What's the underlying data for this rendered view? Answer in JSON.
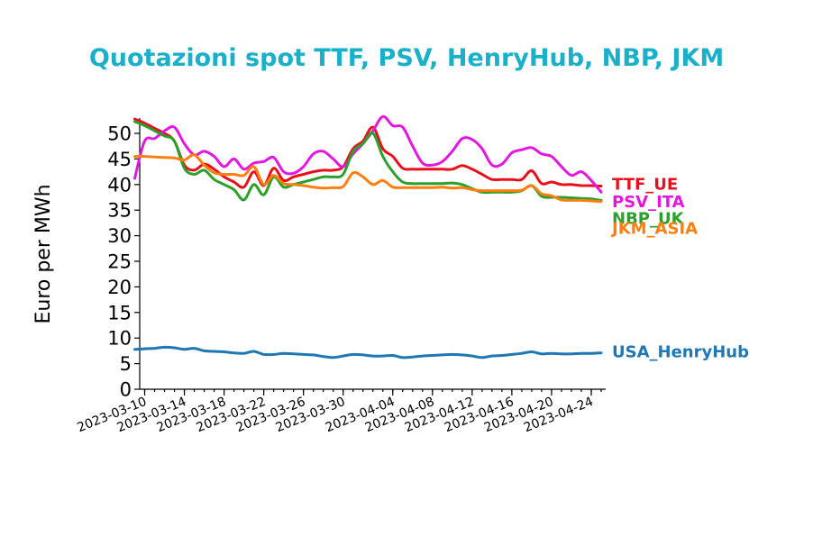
{
  "chart_data": {
    "type": "line",
    "title": "Quotazioni spot TTF, PSV, HenryHub, NBP, JKM",
    "xlabel": "",
    "ylabel": "Euro per MWh",
    "ylim": [
      0,
      53
    ],
    "yticks": [
      0,
      5,
      10,
      15,
      20,
      25,
      30,
      35,
      40,
      45,
      50
    ],
    "xlim": [
      "2023-03-10",
      "2023-04-24"
    ],
    "xticks": [
      "2023-03-10",
      "2023-03-14",
      "2023-03-18",
      "2023-03-22",
      "2023-03-26",
      "2023-03-30",
      "2023-04-04",
      "2023-04-08",
      "2023-04-12",
      "2023-04-16",
      "2023-04-20",
      "2023-04-24"
    ],
    "grid": false,
    "legend": "inline labels at right end of lines",
    "series": [
      {
        "name": "TTF_UE",
        "color": "#e8111b",
        "points": [
          [
            "2023-03-09",
            52.8
          ],
          [
            "2023-03-10",
            52.0
          ],
          [
            "2023-03-11",
            51.0
          ],
          [
            "2023-03-12",
            50.0
          ],
          [
            "2023-03-13",
            48.5
          ],
          [
            "2023-03-14",
            43.8
          ],
          [
            "2023-03-15",
            42.8
          ],
          [
            "2023-03-16",
            44.0
          ],
          [
            "2023-03-17",
            43.0
          ],
          [
            "2023-03-18",
            41.5
          ],
          [
            "2023-03-19",
            40.5
          ],
          [
            "2023-03-20",
            39.5
          ],
          [
            "2023-03-21",
            42.5
          ],
          [
            "2023-03-22",
            39.8
          ],
          [
            "2023-03-23",
            43.2
          ],
          [
            "2023-03-24",
            40.8
          ],
          [
            "2023-03-25",
            41.5
          ],
          [
            "2023-03-26",
            42.0
          ],
          [
            "2023-03-27",
            42.5
          ],
          [
            "2023-03-28",
            42.8
          ],
          [
            "2023-03-29",
            42.8
          ],
          [
            "2023-03-30",
            43.5
          ],
          [
            "2023-03-31",
            47.0
          ],
          [
            "2023-04-01",
            48.5
          ],
          [
            "2023-04-02",
            51.2
          ],
          [
            "2023-04-03",
            47.0
          ],
          [
            "2023-04-04",
            45.5
          ],
          [
            "2023-04-05",
            43.2
          ],
          [
            "2023-04-06",
            43.0
          ],
          [
            "2023-04-07",
            43.0
          ],
          [
            "2023-04-08",
            43.0
          ],
          [
            "2023-04-09",
            43.0
          ],
          [
            "2023-04-10",
            43.0
          ],
          [
            "2023-04-11",
            43.7
          ],
          [
            "2023-04-12",
            43.0
          ],
          [
            "2023-04-13",
            42.0
          ],
          [
            "2023-04-14",
            41.0
          ],
          [
            "2023-04-15",
            41.0
          ],
          [
            "2023-04-16",
            41.0
          ],
          [
            "2023-04-17",
            41.0
          ],
          [
            "2023-04-18",
            42.7
          ],
          [
            "2023-04-19",
            40.2
          ],
          [
            "2023-04-20",
            40.5
          ],
          [
            "2023-04-21",
            40.0
          ],
          [
            "2023-04-22",
            40.0
          ],
          [
            "2023-04-23",
            39.8
          ],
          [
            "2023-04-24",
            39.8
          ],
          [
            "2023-04-25",
            39.7
          ]
        ]
      },
      {
        "name": "PSV_ITA",
        "color": "#e317e0",
        "points": [
          [
            "2023-03-09",
            41.2
          ],
          [
            "2023-03-10",
            48.5
          ],
          [
            "2023-03-11",
            49.0
          ],
          [
            "2023-03-12",
            50.5
          ],
          [
            "2023-03-13",
            51.2
          ],
          [
            "2023-03-14",
            48.0
          ],
          [
            "2023-03-15",
            45.8
          ],
          [
            "2023-03-16",
            46.5
          ],
          [
            "2023-03-17",
            45.5
          ],
          [
            "2023-03-18",
            43.5
          ],
          [
            "2023-03-19",
            45.0
          ],
          [
            "2023-03-20",
            43.0
          ],
          [
            "2023-03-21",
            44.2
          ],
          [
            "2023-03-22",
            44.5
          ],
          [
            "2023-03-23",
            45.3
          ],
          [
            "2023-03-24",
            42.5
          ],
          [
            "2023-03-25",
            42.2
          ],
          [
            "2023-03-26",
            43.5
          ],
          [
            "2023-03-27",
            46.0
          ],
          [
            "2023-03-28",
            46.5
          ],
          [
            "2023-03-29",
            45.0
          ],
          [
            "2023-03-30",
            43.5
          ],
          [
            "2023-03-31",
            46.0
          ],
          [
            "2023-04-01",
            48.0
          ],
          [
            "2023-04-02",
            50.5
          ],
          [
            "2023-04-03",
            53.3
          ],
          [
            "2023-04-04",
            51.5
          ],
          [
            "2023-04-05",
            51.2
          ],
          [
            "2023-04-06",
            47.5
          ],
          [
            "2023-04-07",
            44.2
          ],
          [
            "2023-04-08",
            43.8
          ],
          [
            "2023-04-09",
            44.5
          ],
          [
            "2023-04-10",
            46.5
          ],
          [
            "2023-04-11",
            49.0
          ],
          [
            "2023-04-12",
            48.8
          ],
          [
            "2023-04-13",
            47.0
          ],
          [
            "2023-04-14",
            43.8
          ],
          [
            "2023-04-15",
            44.0
          ],
          [
            "2023-04-16",
            46.2
          ],
          [
            "2023-04-17",
            46.8
          ],
          [
            "2023-04-18",
            47.2
          ],
          [
            "2023-04-19",
            46.0
          ],
          [
            "2023-04-20",
            45.5
          ],
          [
            "2023-04-21",
            43.5
          ],
          [
            "2023-04-22",
            41.8
          ],
          [
            "2023-04-23",
            42.5
          ],
          [
            "2023-04-24",
            40.8
          ],
          [
            "2023-04-25",
            38.5
          ]
        ]
      },
      {
        "name": "NBP_UK",
        "color": "#2ca02c",
        "points": [
          [
            "2023-03-09",
            52.3
          ],
          [
            "2023-03-10",
            51.5
          ],
          [
            "2023-03-11",
            50.5
          ],
          [
            "2023-03-12",
            49.5
          ],
          [
            "2023-03-13",
            48.5
          ],
          [
            "2023-03-14",
            43.2
          ],
          [
            "2023-03-15",
            42.0
          ],
          [
            "2023-03-16",
            42.8
          ],
          [
            "2023-03-17",
            41.0
          ],
          [
            "2023-03-18",
            40.0
          ],
          [
            "2023-03-19",
            39.0
          ],
          [
            "2023-03-20",
            37.0
          ],
          [
            "2023-03-21",
            40.0
          ],
          [
            "2023-03-22",
            38.0
          ],
          [
            "2023-03-23",
            41.5
          ],
          [
            "2023-03-24",
            39.5
          ],
          [
            "2023-03-25",
            40.0
          ],
          [
            "2023-03-26",
            40.5
          ],
          [
            "2023-03-27",
            41.0
          ],
          [
            "2023-03-28",
            41.5
          ],
          [
            "2023-03-29",
            41.5
          ],
          [
            "2023-03-30",
            42.0
          ],
          [
            "2023-03-31",
            46.5
          ],
          [
            "2023-04-01",
            48.0
          ],
          [
            "2023-04-02",
            50.0
          ],
          [
            "2023-04-03",
            45.5
          ],
          [
            "2023-04-04",
            42.5
          ],
          [
            "2023-04-05",
            40.5
          ],
          [
            "2023-04-06",
            40.2
          ],
          [
            "2023-04-07",
            40.2
          ],
          [
            "2023-04-08",
            40.2
          ],
          [
            "2023-04-09",
            40.2
          ],
          [
            "2023-04-10",
            40.3
          ],
          [
            "2023-04-11",
            40.0
          ],
          [
            "2023-04-12",
            39.2
          ],
          [
            "2023-04-13",
            38.5
          ],
          [
            "2023-04-14",
            38.5
          ],
          [
            "2023-04-15",
            38.5
          ],
          [
            "2023-04-16",
            38.5
          ],
          [
            "2023-04-17",
            38.8
          ],
          [
            "2023-04-18",
            39.8
          ],
          [
            "2023-04-19",
            37.7
          ],
          [
            "2023-04-20",
            37.5
          ],
          [
            "2023-04-21",
            37.5
          ],
          [
            "2023-04-22",
            37.4
          ],
          [
            "2023-04-23",
            37.3
          ],
          [
            "2023-04-24",
            37.2
          ],
          [
            "2023-04-25",
            36.9
          ]
        ]
      },
      {
        "name": "JKM_ASIA",
        "color": "#ff7f0e",
        "points": [
          [
            "2023-03-09",
            45.5
          ],
          [
            "2023-03-10",
            45.5
          ],
          [
            "2023-03-11",
            45.4
          ],
          [
            "2023-03-12",
            45.3
          ],
          [
            "2023-03-13",
            45.2
          ],
          [
            "2023-03-14",
            44.8
          ],
          [
            "2023-03-15",
            45.8
          ],
          [
            "2023-03-16",
            43.8
          ],
          [
            "2023-03-17",
            42.3
          ],
          [
            "2023-03-18",
            42.0
          ],
          [
            "2023-03-19",
            42.0
          ],
          [
            "2023-03-20",
            41.8
          ],
          [
            "2023-03-21",
            43.5
          ],
          [
            "2023-03-22",
            40.0
          ],
          [
            "2023-03-23",
            41.8
          ],
          [
            "2023-03-24",
            40.2
          ],
          [
            "2023-03-25",
            40.0
          ],
          [
            "2023-03-26",
            39.8
          ],
          [
            "2023-03-27",
            39.5
          ],
          [
            "2023-03-28",
            39.3
          ],
          [
            "2023-03-29",
            39.4
          ],
          [
            "2023-03-30",
            39.6
          ],
          [
            "2023-03-31",
            42.3
          ],
          [
            "2023-04-01",
            41.5
          ],
          [
            "2023-04-02",
            40.0
          ],
          [
            "2023-04-03",
            40.8
          ],
          [
            "2023-04-04",
            39.5
          ],
          [
            "2023-04-05",
            39.4
          ],
          [
            "2023-04-06",
            39.4
          ],
          [
            "2023-04-07",
            39.4
          ],
          [
            "2023-04-08",
            39.4
          ],
          [
            "2023-04-09",
            39.5
          ],
          [
            "2023-04-10",
            39.3
          ],
          [
            "2023-04-11",
            39.4
          ],
          [
            "2023-04-12",
            39.0
          ],
          [
            "2023-04-13",
            38.8
          ],
          [
            "2023-04-14",
            38.8
          ],
          [
            "2023-04-15",
            38.8
          ],
          [
            "2023-04-16",
            38.8
          ],
          [
            "2023-04-17",
            38.9
          ],
          [
            "2023-04-18",
            39.8
          ],
          [
            "2023-04-19",
            38.2
          ],
          [
            "2023-04-20",
            37.8
          ],
          [
            "2023-04-21",
            37.0
          ],
          [
            "2023-04-22",
            36.9
          ],
          [
            "2023-04-23",
            36.9
          ],
          [
            "2023-04-24",
            36.8
          ],
          [
            "2023-04-25",
            36.7
          ]
        ]
      },
      {
        "name": "USA_HenryHub",
        "color": "#1f77b4",
        "points": [
          [
            "2023-03-09",
            7.8
          ],
          [
            "2023-03-10",
            7.9
          ],
          [
            "2023-03-11",
            8.0
          ],
          [
            "2023-03-12",
            8.2
          ],
          [
            "2023-03-13",
            8.1
          ],
          [
            "2023-03-14",
            7.8
          ],
          [
            "2023-03-15",
            8.0
          ],
          [
            "2023-03-16",
            7.5
          ],
          [
            "2023-03-17",
            7.4
          ],
          [
            "2023-03-18",
            7.3
          ],
          [
            "2023-03-19",
            7.1
          ],
          [
            "2023-03-20",
            7.0
          ],
          [
            "2023-03-21",
            7.4
          ],
          [
            "2023-03-22",
            6.8
          ],
          [
            "2023-03-23",
            6.8
          ],
          [
            "2023-03-24",
            7.0
          ],
          [
            "2023-03-25",
            6.9
          ],
          [
            "2023-03-26",
            6.8
          ],
          [
            "2023-03-27",
            6.7
          ],
          [
            "2023-03-28",
            6.4
          ],
          [
            "2023-03-29",
            6.2
          ],
          [
            "2023-03-30",
            6.5
          ],
          [
            "2023-03-31",
            6.8
          ],
          [
            "2023-04-01",
            6.7
          ],
          [
            "2023-04-02",
            6.5
          ],
          [
            "2023-04-03",
            6.5
          ],
          [
            "2023-04-04",
            6.6
          ],
          [
            "2023-04-05",
            6.2
          ],
          [
            "2023-04-06",
            6.3
          ],
          [
            "2023-04-07",
            6.5
          ],
          [
            "2023-04-08",
            6.6
          ],
          [
            "2023-04-09",
            6.7
          ],
          [
            "2023-04-10",
            6.8
          ],
          [
            "2023-04-11",
            6.7
          ],
          [
            "2023-04-12",
            6.5
          ],
          [
            "2023-04-13",
            6.2
          ],
          [
            "2023-04-14",
            6.5
          ],
          [
            "2023-04-15",
            6.6
          ],
          [
            "2023-04-16",
            6.8
          ],
          [
            "2023-04-17",
            7.0
          ],
          [
            "2023-04-18",
            7.3
          ],
          [
            "2023-04-19",
            6.9
          ],
          [
            "2023-04-20",
            7.0
          ],
          [
            "2023-04-21",
            6.9
          ],
          [
            "2023-04-22",
            6.9
          ],
          [
            "2023-04-23",
            7.0
          ],
          [
            "2023-04-24",
            7.0
          ],
          [
            "2023-04-25",
            7.1
          ]
        ]
      }
    ]
  }
}
